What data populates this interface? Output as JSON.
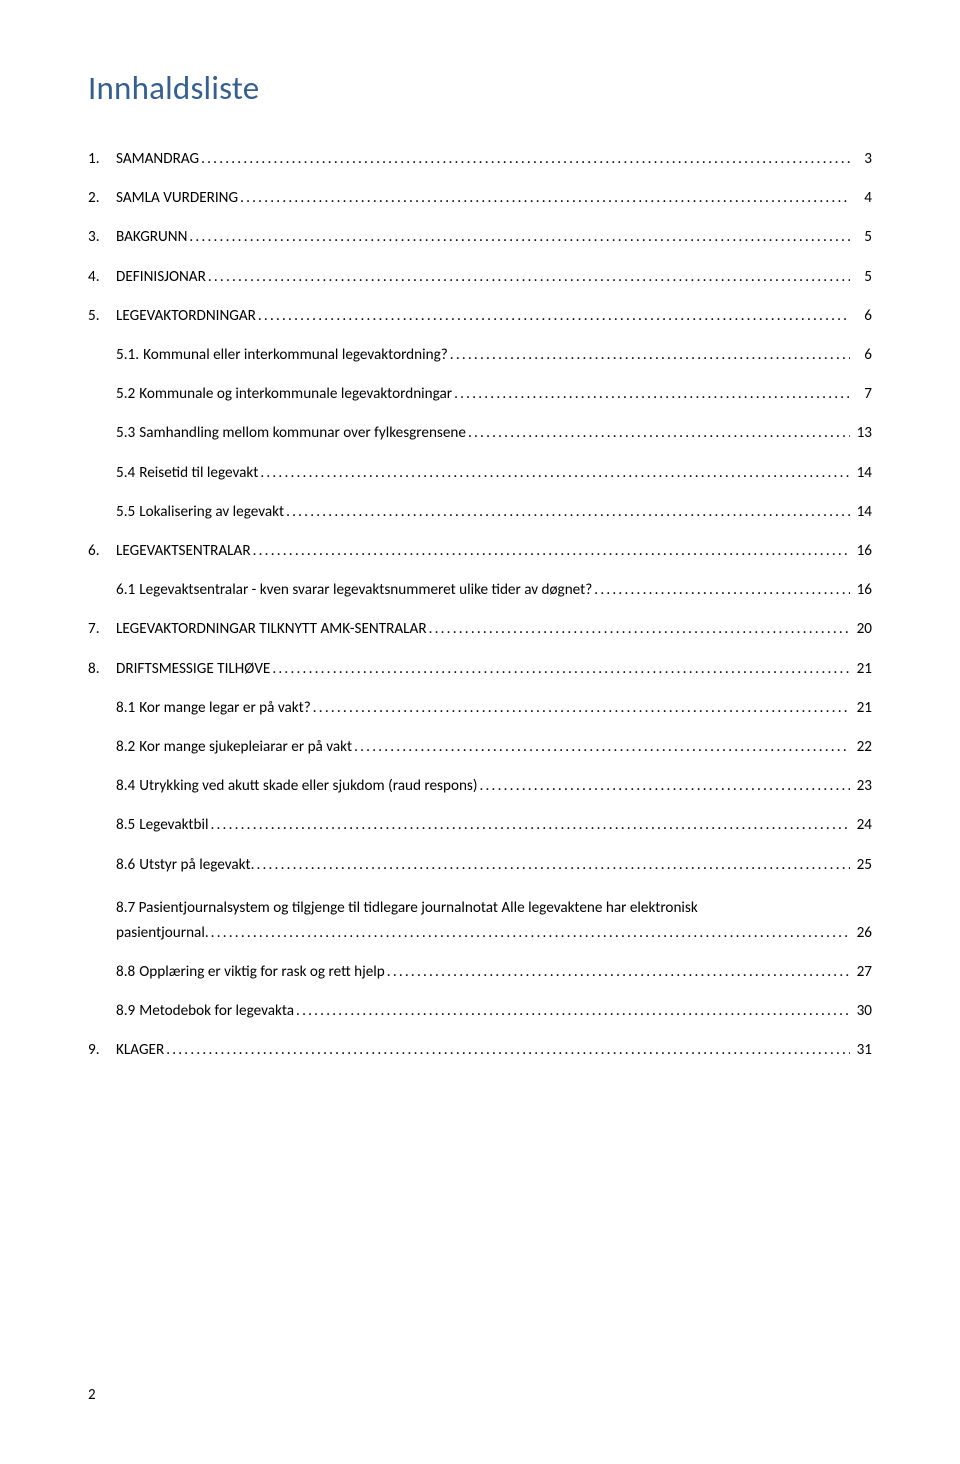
{
  "title": "Innhaldsliste",
  "pageNumber": "2",
  "toc": [
    {
      "level": 1,
      "num": "1.",
      "label": "SAMANDRAG",
      "page": "3"
    },
    {
      "level": 1,
      "num": "2.",
      "label": "SAMLA VURDERING",
      "page": "4"
    },
    {
      "level": 1,
      "num": "3.",
      "label": "BAKGRUNN",
      "page": "5"
    },
    {
      "level": 1,
      "num": "4.",
      "label": "DEFINISJONAR",
      "page": "5"
    },
    {
      "level": 1,
      "num": "5.",
      "label": "LEGEVAKTORDNINGAR",
      "page": "6"
    },
    {
      "level": 2,
      "num": "5.1.",
      "label": "Kommunal eller interkommunal legevaktordning?",
      "page": "6"
    },
    {
      "level": 2,
      "num": "5.2",
      "label": "Kommunale og interkommunale legevaktordningar",
      "page": "7"
    },
    {
      "level": 2,
      "num": "5.3",
      "label": "Samhandling mellom kommunar over fylkesgrensene",
      "page": "13"
    },
    {
      "level": 2,
      "num": "5.4",
      "label": "Reisetid til legevakt",
      "page": "14"
    },
    {
      "level": 2,
      "num": "5.5",
      "label": "Lokalisering av legevakt",
      "page": "14"
    },
    {
      "level": 1,
      "num": "6.",
      "label": "LEGEVAKTSENTRALAR",
      "page": "16"
    },
    {
      "level": 2,
      "num": "6.1",
      "label": "Legevaktsentralar - kven svarar legevaktsnummeret ulike tider av døgnet?",
      "page": "16"
    },
    {
      "level": 1,
      "num": "7.",
      "label": "LEGEVAKTORDNINGAR TILKNYTT AMK-SENTRALAR",
      "page": "20"
    },
    {
      "level": 1,
      "num": "8.",
      "label": "DRIFTSMESSIGE TILHØVE",
      "page": "21"
    },
    {
      "level": 2,
      "num": "8.1",
      "label": "Kor mange legar er på vakt?",
      "page": "21"
    },
    {
      "level": 2,
      "num": "8.2",
      "label": "Kor mange sjukepleiarar er på vakt",
      "page": "22"
    },
    {
      "level": 2,
      "num": "8.4",
      "label": "Utrykking ved akutt skade eller sjukdom (raud respons)",
      "page": "23"
    },
    {
      "level": 2,
      "num": "8.5",
      "label": "Legevaktbil",
      "page": "24"
    },
    {
      "level": 2,
      "num": "8.6",
      "label": "Utstyr på legevakt.",
      "page": "25"
    },
    {
      "level": 2,
      "num": "8.7",
      "label_line1": "Pasientjournalsystem og tilgjenge til tidlegare journalnotat Alle legevaktene har elektronisk",
      "label_line2": "pasientjournal.",
      "page": "26",
      "multiline": true
    },
    {
      "level": 2,
      "num": "8.8",
      "label": "Opplæring er viktig for rask og rett hjelp",
      "page": "27"
    },
    {
      "level": 2,
      "num": "8.9",
      "label": "Metodebok for legevakta",
      "page": "30"
    },
    {
      "level": 1,
      "num": "9.",
      "label": "KLAGER",
      "page": "31"
    }
  ]
}
